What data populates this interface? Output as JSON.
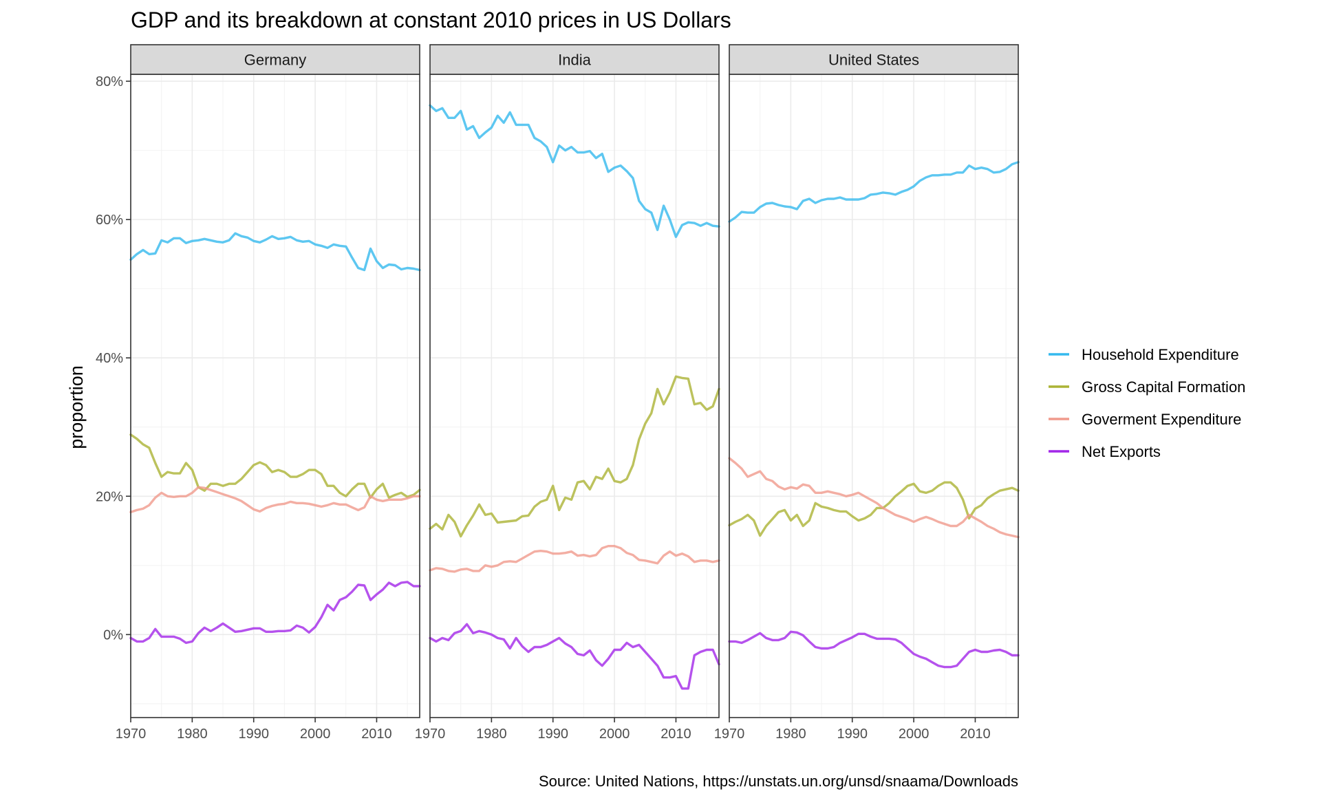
{
  "chart_data": {
    "type": "line",
    "title": "GDP and its breakdown at constant 2010 prices in US Dollars",
    "ylabel": "proportion",
    "xlabel": "",
    "caption": "Source: United Nations, https://unstats.un.org/unsd/snaama/Downloads",
    "xlim": [
      1970,
      2017
    ],
    "ylim": [
      -0.12,
      0.81
    ],
    "x_ticks": [
      1970,
      1980,
      1990,
      2000,
      2010
    ],
    "x_tick_labels": [
      "1970",
      "1980",
      "1990",
      "2000",
      "2010"
    ],
    "y_ticks": [
      0,
      0.2,
      0.4,
      0.6,
      0.8
    ],
    "y_tick_labels": [
      "0%",
      "20%",
      "40%",
      "60%",
      "80%"
    ],
    "grid": true,
    "legend_position": "right",
    "legend": [
      {
        "name": "Household Expenditure",
        "color": "#35b9ee"
      },
      {
        "name": "Gross Capital Formation",
        "color": "#abb335"
      },
      {
        "name": "Goverment Expenditure",
        "color": "#f09a8c"
      },
      {
        "name": "Net Exports",
        "color": "#a227e8"
      }
    ],
    "x": [
      1970,
      1971,
      1972,
      1973,
      1974,
      1975,
      1976,
      1977,
      1978,
      1979,
      1980,
      1981,
      1982,
      1983,
      1984,
      1985,
      1986,
      1987,
      1988,
      1989,
      1990,
      1991,
      1992,
      1993,
      1994,
      1995,
      1996,
      1997,
      1998,
      1999,
      2000,
      2001,
      2002,
      2003,
      2004,
      2005,
      2006,
      2007,
      2008,
      2009,
      2010,
      2011,
      2012,
      2013,
      2014,
      2015,
      2016,
      2017
    ],
    "panels": [
      {
        "name": "Germany",
        "series": [
          {
            "name": "Household Expenditure",
            "values": [
              0.542,
              0.55,
              0.556,
              0.55,
              0.551,
              0.57,
              0.567,
              0.573,
              0.573,
              0.566,
              0.569,
              0.57,
              0.572,
              0.57,
              0.568,
              0.567,
              0.57,
              0.58,
              0.576,
              0.574,
              0.569,
              0.567,
              0.571,
              0.576,
              0.572,
              0.573,
              0.575,
              0.57,
              0.568,
              0.569,
              0.564,
              0.562,
              0.559,
              0.564,
              0.562,
              0.561,
              0.545,
              0.53,
              0.527,
              0.558,
              0.54,
              0.53,
              0.535,
              0.534,
              0.528,
              0.53,
              0.529,
              0.527
            ]
          },
          {
            "name": "Gross Capital Formation",
            "values": [
              0.289,
              0.283,
              0.275,
              0.27,
              0.248,
              0.228,
              0.235,
              0.233,
              0.233,
              0.248,
              0.238,
              0.213,
              0.208,
              0.218,
              0.218,
              0.215,
              0.218,
              0.218,
              0.225,
              0.235,
              0.245,
              0.249,
              0.245,
              0.235,
              0.238,
              0.235,
              0.228,
              0.228,
              0.232,
              0.238,
              0.238,
              0.232,
              0.215,
              0.215,
              0.205,
              0.2,
              0.21,
              0.218,
              0.218,
              0.198,
              0.21,
              0.218,
              0.198,
              0.202,
              0.205,
              0.199,
              0.202,
              0.209
            ]
          },
          {
            "name": "Goverment Expenditure",
            "values": [
              0.177,
              0.18,
              0.182,
              0.187,
              0.198,
              0.205,
              0.2,
              0.199,
              0.2,
              0.2,
              0.205,
              0.213,
              0.212,
              0.209,
              0.206,
              0.203,
              0.2,
              0.197,
              0.193,
              0.187,
              0.181,
              0.178,
              0.183,
              0.186,
              0.188,
              0.189,
              0.192,
              0.19,
              0.19,
              0.189,
              0.187,
              0.185,
              0.187,
              0.19,
              0.188,
              0.188,
              0.184,
              0.18,
              0.184,
              0.2,
              0.195,
              0.193,
              0.195,
              0.195,
              0.195,
              0.197,
              0.2,
              0.2
            ]
          },
          {
            "name": "Net Exports",
            "values": [
              -0.005,
              -0.01,
              -0.01,
              -0.005,
              0.008,
              -0.003,
              -0.003,
              -0.003,
              -0.006,
              -0.012,
              -0.01,
              0.002,
              0.01,
              0.005,
              0.01,
              0.016,
              0.01,
              0.004,
              0.005,
              0.007,
              0.009,
              0.009,
              0.004,
              0.004,
              0.005,
              0.005,
              0.006,
              0.013,
              0.01,
              0.003,
              0.011,
              0.025,
              0.043,
              0.035,
              0.05,
              0.054,
              0.062,
              0.072,
              0.071,
              0.05,
              0.058,
              0.065,
              0.075,
              0.07,
              0.075,
              0.076,
              0.07,
              0.07
            ]
          }
        ]
      },
      {
        "name": "India",
        "series": [
          {
            "name": "Household Expenditure",
            "values": [
              0.765,
              0.757,
              0.761,
              0.747,
              0.747,
              0.757,
              0.73,
              0.735,
              0.718,
              0.726,
              0.733,
              0.75,
              0.74,
              0.755,
              0.737,
              0.737,
              0.737,
              0.718,
              0.713,
              0.705,
              0.683,
              0.707,
              0.7,
              0.705,
              0.697,
              0.697,
              0.699,
              0.689,
              0.695,
              0.669,
              0.675,
              0.678,
              0.67,
              0.66,
              0.627,
              0.615,
              0.61,
              0.585,
              0.62,
              0.6,
              0.575,
              0.592,
              0.596,
              0.595,
              0.591,
              0.595,
              0.591,
              0.59
            ]
          },
          {
            "name": "Gross Capital Formation",
            "values": [
              0.153,
              0.16,
              0.152,
              0.173,
              0.163,
              0.142,
              0.158,
              0.172,
              0.188,
              0.173,
              0.175,
              0.162,
              0.163,
              0.164,
              0.165,
              0.171,
              0.172,
              0.185,
              0.192,
              0.195,
              0.215,
              0.18,
              0.198,
              0.195,
              0.22,
              0.222,
              0.21,
              0.228,
              0.225,
              0.24,
              0.222,
              0.22,
              0.225,
              0.245,
              0.282,
              0.305,
              0.32,
              0.355,
              0.333,
              0.35,
              0.373,
              0.371,
              0.37,
              0.333,
              0.335,
              0.325,
              0.33,
              0.355
            ]
          },
          {
            "name": "Goverment Expenditure",
            "values": [
              0.093,
              0.096,
              0.095,
              0.092,
              0.091,
              0.094,
              0.095,
              0.092,
              0.092,
              0.1,
              0.098,
              0.1,
              0.105,
              0.106,
              0.105,
              0.11,
              0.115,
              0.12,
              0.121,
              0.12,
              0.117,
              0.117,
              0.118,
              0.12,
              0.114,
              0.115,
              0.113,
              0.115,
              0.125,
              0.128,
              0.128,
              0.125,
              0.118,
              0.115,
              0.108,
              0.107,
              0.105,
              0.103,
              0.114,
              0.12,
              0.114,
              0.117,
              0.113,
              0.105,
              0.107,
              0.107,
              0.105,
              0.107
            ]
          },
          {
            "name": "Net Exports",
            "values": [
              -0.005,
              -0.01,
              -0.005,
              -0.008,
              0.002,
              0.005,
              0.015,
              0.002,
              0.005,
              0.003,
              0.0,
              -0.005,
              -0.007,
              -0.02,
              -0.005,
              -0.017,
              -0.025,
              -0.018,
              -0.018,
              -0.015,
              -0.01,
              -0.005,
              -0.013,
              -0.018,
              -0.028,
              -0.03,
              -0.023,
              -0.037,
              -0.045,
              -0.035,
              -0.022,
              -0.022,
              -0.012,
              -0.018,
              -0.015,
              -0.025,
              -0.035,
              -0.045,
              -0.062,
              -0.062,
              -0.06,
              -0.078,
              -0.078,
              -0.03,
              -0.025,
              -0.022,
              -0.022,
              -0.043
            ]
          }
        ]
      },
      {
        "name": "United States",
        "series": [
          {
            "name": "Household Expenditure",
            "values": [
              0.597,
              0.603,
              0.611,
              0.61,
              0.61,
              0.618,
              0.623,
              0.624,
              0.621,
              0.619,
              0.618,
              0.615,
              0.627,
              0.63,
              0.624,
              0.628,
              0.63,
              0.63,
              0.632,
              0.629,
              0.629,
              0.629,
              0.631,
              0.636,
              0.637,
              0.639,
              0.638,
              0.636,
              0.64,
              0.643,
              0.648,
              0.656,
              0.661,
              0.664,
              0.664,
              0.665,
              0.665,
              0.668,
              0.668,
              0.678,
              0.673,
              0.675,
              0.673,
              0.668,
              0.669,
              0.673,
              0.68,
              0.683
            ]
          },
          {
            "name": "Gross Capital Formation",
            "values": [
              0.158,
              0.163,
              0.167,
              0.173,
              0.165,
              0.143,
              0.157,
              0.167,
              0.177,
              0.18,
              0.165,
              0.173,
              0.157,
              0.165,
              0.19,
              0.185,
              0.183,
              0.18,
              0.178,
              0.178,
              0.171,
              0.165,
              0.168,
              0.173,
              0.183,
              0.183,
              0.19,
              0.2,
              0.207,
              0.215,
              0.218,
              0.207,
              0.205,
              0.208,
              0.215,
              0.22,
              0.22,
              0.212,
              0.195,
              0.168,
              0.182,
              0.187,
              0.197,
              0.203,
              0.208,
              0.21,
              0.212,
              0.208
            ]
          },
          {
            "name": "Goverment Expenditure",
            "values": [
              0.255,
              0.248,
              0.24,
              0.228,
              0.232,
              0.236,
              0.225,
              0.222,
              0.214,
              0.21,
              0.213,
              0.211,
              0.217,
              0.215,
              0.205,
              0.205,
              0.207,
              0.205,
              0.203,
              0.2,
              0.202,
              0.205,
              0.2,
              0.195,
              0.19,
              0.183,
              0.178,
              0.173,
              0.17,
              0.167,
              0.163,
              0.167,
              0.17,
              0.167,
              0.163,
              0.16,
              0.157,
              0.157,
              0.163,
              0.173,
              0.168,
              0.163,
              0.157,
              0.153,
              0.148,
              0.145,
              0.143,
              0.141
            ]
          },
          {
            "name": "Net Exports",
            "values": [
              -0.01,
              -0.01,
              -0.012,
              -0.008,
              -0.003,
              0.002,
              -0.005,
              -0.008,
              -0.008,
              -0.005,
              0.004,
              0.003,
              -0.001,
              -0.01,
              -0.018,
              -0.02,
              -0.02,
              -0.018,
              -0.012,
              -0.008,
              -0.004,
              0.001,
              0.001,
              -0.003,
              -0.006,
              -0.006,
              -0.006,
              -0.007,
              -0.012,
              -0.02,
              -0.028,
              -0.032,
              -0.035,
              -0.04,
              -0.045,
              -0.047,
              -0.047,
              -0.045,
              -0.035,
              -0.025,
              -0.022,
              -0.025,
              -0.025,
              -0.023,
              -0.022,
              -0.025,
              -0.03,
              -0.03
            ]
          }
        ]
      }
    ]
  }
}
